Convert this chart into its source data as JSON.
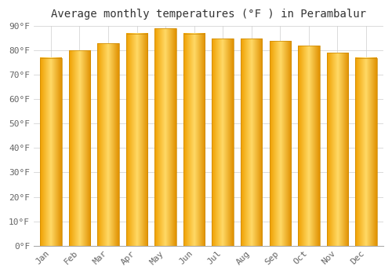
{
  "title": "Average monthly temperatures (°F ) in Perambalur",
  "months": [
    "Jan",
    "Feb",
    "Mar",
    "Apr",
    "May",
    "Jun",
    "Jul",
    "Aug",
    "Sep",
    "Oct",
    "Nov",
    "Dec"
  ],
  "values": [
    77,
    80,
    83,
    87,
    89,
    87,
    85,
    85,
    84,
    82,
    79,
    77
  ],
  "ylim": [
    0,
    90
  ],
  "yticks": [
    0,
    10,
    20,
    30,
    40,
    50,
    60,
    70,
    80,
    90
  ],
  "ytick_labels": [
    "0°F",
    "10°F",
    "20°F",
    "30°F",
    "40°F",
    "50°F",
    "60°F",
    "70°F",
    "80°F",
    "90°F"
  ],
  "background_color": "#FFFFFF",
  "grid_color": "#CCCCCC",
  "bar_color_center": "#FFD966",
  "bar_color_edge": "#F0A000",
  "bar_border_color": "#CC8800",
  "title_fontsize": 10,
  "tick_fontsize": 8,
  "font_family": "monospace",
  "bar_width": 0.75
}
